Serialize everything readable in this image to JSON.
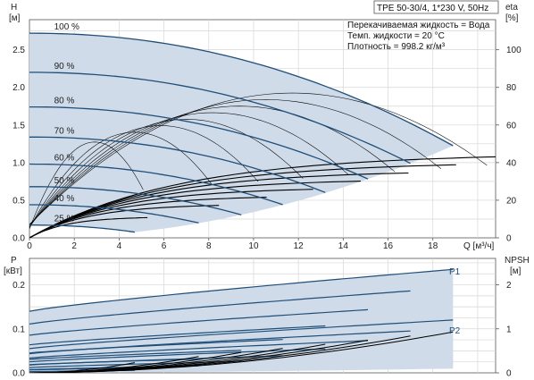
{
  "chart_data": [
    {
      "type": "line",
      "title": "TPE 50-30/4, 1*230 V, 50Hz",
      "xlabel": "Q [м³/ч]",
      "ylabel": "H",
      "yunit": "[м]",
      "y2label": "eta",
      "y2unit": "[%]",
      "xlim": [
        0,
        20.8
      ],
      "ylim": [
        0,
        2.9
      ],
      "y2lim": [
        0,
        116
      ],
      "xticks": [
        "0",
        "2",
        "4",
        "6",
        "8",
        "10",
        "12",
        "14",
        "16",
        "18"
      ],
      "yticks": [
        "0.0",
        "0.5",
        "1.0",
        "1.5",
        "2.0",
        "2.5"
      ],
      "y2ticks": [
        "0",
        "20",
        "40",
        "60",
        "80",
        "100"
      ],
      "info_lines": [
        "Перекачиваемая жидкость = Вода",
        "Темп. жидкости = 20 °C",
        "Плотность = 998.2 кг/м³"
      ],
      "speed_curves": [
        {
          "label": "100 %",
          "shut_off_head": 2.72,
          "max_flow": 18.9
        },
        {
          "label": "90 %",
          "shut_off_head": 2.2,
          "max_flow": 17.0
        },
        {
          "label": "80 %",
          "shut_off_head": 1.74,
          "max_flow": 15.1
        },
        {
          "label": "70 %",
          "shut_off_head": 1.34,
          "max_flow": 13.2
        },
        {
          "label": "60 %",
          "shut_off_head": 0.98,
          "max_flow": 11.3
        },
        {
          "label": "50 %",
          "shut_off_head": 0.68,
          "max_flow": 9.45
        },
        {
          "label": "40 %",
          "shut_off_head": 0.44,
          "max_flow": 7.55
        },
        {
          "label": "25 %",
          "shut_off_head": 0.17,
          "max_flow": 4.7
        }
      ],
      "eta_max": 77,
      "grid": true,
      "shaded_operating_area": true
    },
    {
      "type": "line",
      "xlabel": "",
      "ylabel": "P",
      "yunit": "[кВт]",
      "y2label": "NPSH",
      "y2unit": "[м]",
      "xlim": [
        0,
        20.8
      ],
      "ylim": [
        0,
        0.26
      ],
      "y2lim": [
        0,
        2.6
      ],
      "yticks": [
        "0.0",
        "0.1",
        "0.2"
      ],
      "y2ticks": [
        "0",
        "1",
        "2"
      ],
      "series": [
        {
          "name": "P1",
          "p0": 0.14,
          "p_end": 0.235,
          "max_flow": 18.9
        },
        {
          "name": "P2",
          "p0": 0.055,
          "p_end": 0.12,
          "max_flow": 18.9
        }
      ],
      "npsh_end": 0.93,
      "grid": true
    }
  ]
}
